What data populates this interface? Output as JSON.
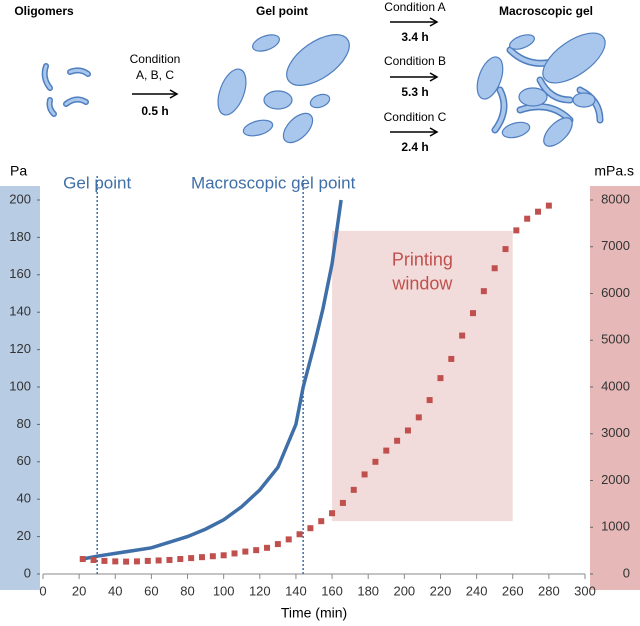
{
  "diagram": {
    "oligomers": "Oligomers",
    "first_step": {
      "condition": [
        "Condition",
        "A, B, C"
      ],
      "time": "0.5 h"
    },
    "gel_point": "Gel point",
    "conditions": [
      {
        "label": "Condition A",
        "time": "3.4 h"
      },
      {
        "label": "Condition B",
        "time": "5.3 h"
      },
      {
        "label": "Condition C",
        "time": "2.4 h"
      }
    ],
    "macroscopic_gel": "Macroscopic gel"
  },
  "chart_data": {
    "type": "line",
    "x_label": "Time (min)",
    "y_label": "Pa",
    "y2_label": "mPa.s",
    "xlim": [
      0,
      300
    ],
    "xticks": [
      0,
      20,
      40,
      60,
      80,
      100,
      120,
      140,
      160,
      180,
      200,
      220,
      240,
      260,
      280,
      300
    ],
    "ylim": [
      0,
      200
    ],
    "yticks": [
      0,
      20,
      40,
      60,
      80,
      100,
      120,
      140,
      160,
      180,
      200
    ],
    "y2lim": [
      0,
      8000
    ],
    "y2ticks": [
      0,
      1000,
      2000,
      3000,
      4000,
      5000,
      6000,
      7000,
      8000
    ],
    "series": [
      {
        "color": "#3f6fa8",
        "x": [
          22,
          30,
          40,
          50,
          60,
          70,
          80,
          90,
          100,
          110,
          120,
          130,
          140,
          144,
          150,
          155,
          160,
          165
        ],
        "values": [
          8,
          9.5,
          11,
          12.5,
          14,
          17,
          20,
          24,
          29,
          36,
          45,
          57,
          80,
          100,
          122,
          142,
          166,
          200
        ]
      },
      {
        "color": "#c0504d",
        "axis": "y2",
        "marker": "square",
        "x": [
          22,
          28,
          34,
          40,
          46,
          52,
          58,
          64,
          70,
          76,
          82,
          88,
          94,
          100,
          106,
          112,
          118,
          124,
          130,
          136,
          142,
          148,
          154,
          160,
          166,
          172,
          178,
          184,
          190,
          196,
          202,
          208,
          214,
          220,
          226,
          232,
          238,
          244,
          250,
          256,
          262,
          268,
          274,
          280
        ],
        "values": [
          320,
          300,
          280,
          270,
          265,
          270,
          280,
          290,
          300,
          320,
          340,
          360,
          380,
          400,
          440,
          480,
          510,
          560,
          640,
          740,
          850,
          980,
          1130,
          1300,
          1520,
          1800,
          2130,
          2400,
          2640,
          2850,
          3070,
          3350,
          3720,
          4190,
          4600,
          5100,
          5580,
          6050,
          6540,
          6950,
          7350,
          7600,
          7750,
          7880
        ]
      }
    ],
    "annotations": [
      {
        "text": "Gel point",
        "x": 30,
        "color": "#3f6fa8"
      },
      {
        "text": "Macroscopic gel point",
        "x": 144,
        "color": "#3f6fa8"
      }
    ],
    "window": {
      "lines": [
        "Printing",
        "window"
      ],
      "xlim": [
        160,
        260
      ],
      "y2lim": [
        1130,
        7340
      ],
      "color": "#f2dcdb",
      "text_color": "#c0504d"
    }
  }
}
